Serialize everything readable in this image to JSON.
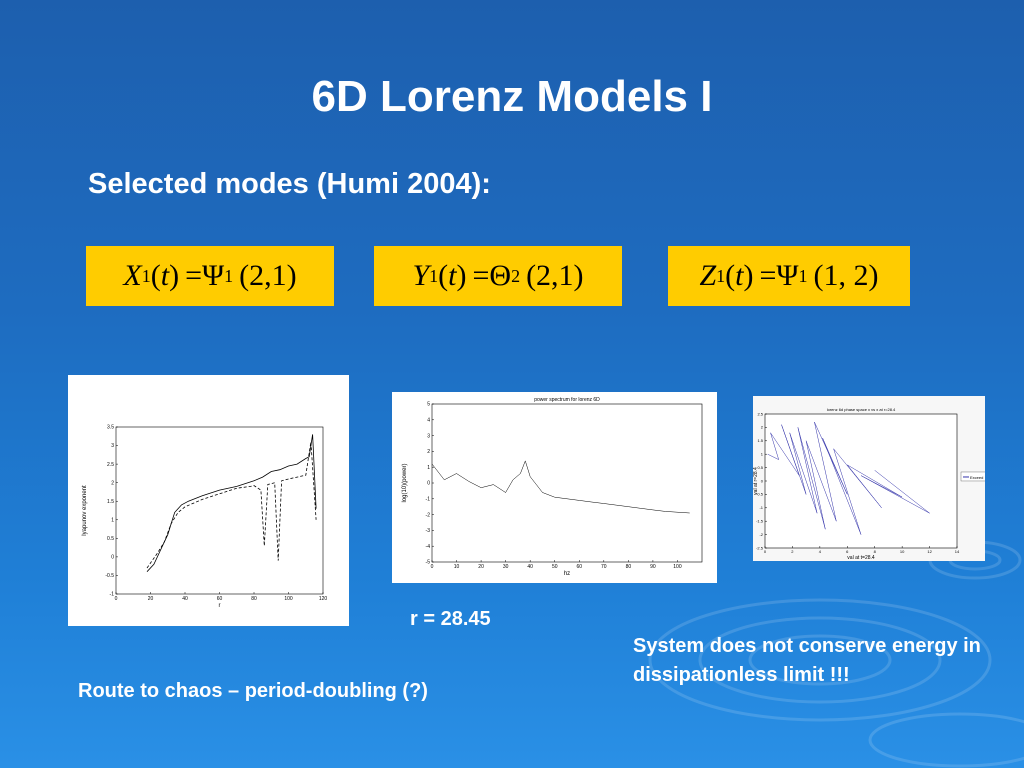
{
  "slide": {
    "title": "6D Lorenz Models I",
    "subtitle": "Selected modes (Humi 2004):"
  },
  "equations": [
    {
      "lhs_var": "X",
      "lhs_sub": "1",
      "arg": "t",
      "rhs_var": "Ψ",
      "rhs_sub": "1",
      "indices": "(2,1)"
    },
    {
      "lhs_var": "Y",
      "lhs_sub": "1",
      "arg": "t",
      "rhs_var": "Θ",
      "rhs_sub": "2",
      "indices": "(2,1)"
    },
    {
      "lhs_var": "Z",
      "lhs_sub": "1",
      "arg": "t",
      "rhs_var": "Ψ",
      "rhs_sub": "1",
      "indices": "(1, 2)"
    }
  ],
  "captions": {
    "r_value": "r = 28.45",
    "route": "Route to chaos – period-doubling (?)",
    "system": "System does not conserve energy in dissipationless limit !!!"
  },
  "chart_data": [
    {
      "type": "line",
      "xlabel": "r",
      "ylabel": "lyapunov exponent",
      "xlim": [
        0,
        120
      ],
      "ylim": [
        -1,
        3.5
      ],
      "xticks": [
        0,
        20,
        40,
        60,
        80,
        100,
        120
      ],
      "yticks": [
        -1,
        -0.5,
        0,
        0.5,
        1,
        1.5,
        2,
        2.5,
        3,
        3.5
      ],
      "series": [
        {
          "style": "solid",
          "x": [
            18,
            22,
            26,
            30,
            32,
            34,
            38,
            42,
            50,
            60,
            70,
            80,
            85,
            90,
            95,
            100,
            105,
            110,
            112,
            114,
            116
          ],
          "y": [
            -0.4,
            -0.2,
            0.2,
            0.6,
            0.9,
            1.2,
            1.4,
            1.5,
            1.65,
            1.8,
            1.9,
            2.05,
            2.15,
            2.3,
            2.35,
            2.45,
            2.5,
            2.65,
            2.7,
            3.3,
            1.3
          ]
        },
        {
          "style": "dashed",
          "x": [
            18,
            24,
            28,
            32,
            36,
            40,
            50,
            60,
            70,
            78,
            80,
            84,
            86,
            88,
            92,
            94,
            96,
            100,
            105,
            110,
            113,
            116
          ],
          "y": [
            -0.3,
            0.1,
            0.4,
            0.9,
            1.2,
            1.35,
            1.55,
            1.7,
            1.85,
            1.9,
            1.92,
            1.8,
            0.3,
            1.95,
            2.0,
            -0.1,
            2.05,
            2.1,
            2.15,
            2.2,
            3.1,
            1.0
          ]
        }
      ]
    },
    {
      "type": "line",
      "title": "power spectrum for lorenz 6D",
      "xlabel": "hz",
      "ylabel": "log(10)(power)",
      "xlim": [
        0,
        110
      ],
      "ylim": [
        -5,
        5
      ],
      "xticks": [
        0,
        10,
        20,
        30,
        40,
        50,
        60,
        70,
        80,
        90,
        100
      ],
      "yticks": [
        -5,
        -4,
        -3,
        -2,
        -1,
        0,
        1,
        2,
        3,
        4,
        5
      ],
      "series": [
        {
          "x": [
            0,
            5,
            10,
            15,
            20,
            25,
            30,
            33,
            36,
            38,
            40,
            45,
            50,
            55,
            60,
            65,
            70,
            75,
            80,
            85,
            90,
            95,
            100,
            105
          ],
          "y": [
            1.2,
            0.2,
            0.6,
            0.1,
            -0.3,
            -0.1,
            -0.6,
            0.2,
            0.6,
            1.4,
            0.4,
            -0.6,
            -0.9,
            -1.0,
            -1.1,
            -1.2,
            -1.3,
            -1.4,
            -1.5,
            -1.6,
            -1.7,
            -1.8,
            -1.85,
            -1.9
          ]
        }
      ]
    },
    {
      "type": "line",
      "title": "lorenz 6d phase space x vs x at r=28.4",
      "xlabel": "val at t=28.4",
      "ylabel": "val at r=28.4",
      "legend": [
        "Exceed"
      ],
      "xticks": [
        0,
        2,
        4,
        6,
        8,
        10,
        12,
        14
      ],
      "yticks": [
        2.5,
        2,
        1.5,
        1,
        0.5,
        0,
        -0.5,
        -1,
        -1.5,
        -2,
        -2.5
      ],
      "series": [
        {
          "name": "Exceed",
          "x": [
            0.2,
            1.0,
            0.4,
            2.5,
            1.2,
            3.0,
            1.8,
            3.8,
            2.4,
            4.4,
            3.0,
            5.2,
            3.6,
            6.0,
            4.2,
            7.0,
            5.0,
            8.5,
            6.0,
            10.0,
            7.0,
            12.0,
            8.0
          ],
          "y": [
            1.0,
            0.8,
            1.8,
            0.2,
            2.1,
            -0.5,
            1.8,
            -1.2,
            2.0,
            -1.8,
            1.5,
            -1.5,
            2.2,
            -0.5,
            1.6,
            -2.0,
            1.2,
            -1.0,
            0.6,
            -0.6,
            0.2,
            -1.2,
            0.4
          ]
        }
      ]
    }
  ]
}
